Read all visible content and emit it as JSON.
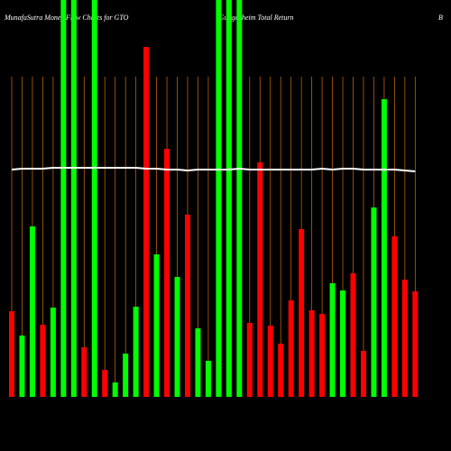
{
  "chart_data": {
    "type": "bar",
    "title": "MunafaSutra Money Flow Charts for GTO",
    "subtitle": "(Guggenheim Total Return",
    "subtitle_end": "B",
    "values": [
      95,
      68,
      189,
      80,
      99,
      440,
      440,
      55,
      440,
      30,
      16,
      48,
      100,
      388,
      158,
      275,
      133,
      202,
      76,
      40,
      440,
      440,
      440,
      82,
      260,
      79,
      59,
      107,
      186,
      96,
      92,
      126,
      118,
      137,
      51,
      210,
      330,
      178,
      130,
      117
    ],
    "colors": [
      "#ff0000",
      "#00ff00",
      "#00ff00",
      "#ff0000",
      "#00ff00",
      "#00ff00",
      "#00ff00",
      "#ff0000",
      "#00ff00",
      "#ff0000",
      "#00ff00",
      "#00ff00",
      "#00ff00",
      "#ff0000",
      "#00ff00",
      "#ff0000",
      "#00ff00",
      "#ff0000",
      "#00ff00",
      "#00ff00",
      "#00ff00",
      "#00ff00",
      "#00ff00",
      "#ff0000",
      "#ff0000",
      "#ff0000",
      "#ff0000",
      "#ff0000",
      "#ff0000",
      "#ff0000",
      "#ff0000",
      "#00ff00",
      "#00ff00",
      "#ff0000",
      "#ff0000",
      "#00ff00",
      "#00ff00",
      "#ff0000",
      "#ff0000",
      "#ff0000"
    ],
    "line": {
      "color": "#ffffff",
      "values": [
        252,
        253,
        253,
        253,
        254,
        254,
        254,
        254,
        254,
        254,
        254,
        254,
        254,
        253,
        253,
        252,
        252,
        251,
        252,
        252,
        252,
        252,
        253,
        252,
        252,
        252,
        252,
        252,
        252,
        252,
        253,
        252,
        253,
        253,
        252,
        252,
        252,
        252,
        251,
        250
      ]
    },
    "ylim": [
      0,
      440
    ],
    "grid_color": "#b8620a"
  }
}
